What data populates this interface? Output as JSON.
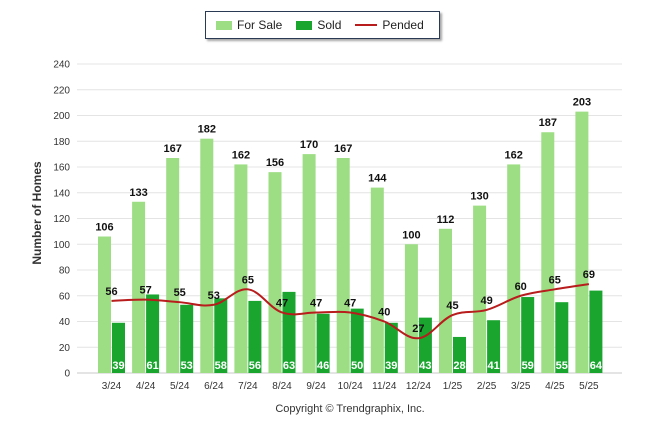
{
  "chart_data": {
    "type": "bar",
    "categories": [
      "3/24",
      "4/24",
      "5/24",
      "6/24",
      "7/24",
      "8/24",
      "9/24",
      "10/24",
      "11/24",
      "12/24",
      "1/25",
      "2/25",
      "3/25",
      "4/25",
      "5/25"
    ],
    "series": [
      {
        "name": "For Sale",
        "type": "bar",
        "values": [
          106,
          133,
          167,
          182,
          162,
          156,
          170,
          167,
          144,
          100,
          112,
          130,
          162,
          187,
          203
        ]
      },
      {
        "name": "Sold",
        "type": "bar",
        "values": [
          39,
          61,
          53,
          58,
          56,
          63,
          46,
          50,
          39,
          43,
          28,
          41,
          59,
          55,
          64
        ]
      },
      {
        "name": "Pended",
        "type": "line",
        "values": [
          56,
          57,
          55,
          53,
          65,
          47,
          47,
          47,
          40,
          27,
          45,
          49,
          60,
          65,
          69
        ]
      }
    ],
    "ylabel": "Number of Homes",
    "xlabel": "",
    "ylim": [
      0,
      240
    ],
    "yticks": [
      0,
      20,
      40,
      60,
      80,
      100,
      120,
      140,
      160,
      180,
      200,
      220,
      240
    ],
    "grid": true,
    "legend": "top-center",
    "colors": {
      "for_sale": "#9ddd84",
      "sold": "#1aa52f",
      "pended": "#b81c1c"
    }
  },
  "footer": {
    "copyright": "Copyright © Trendgraphix, Inc."
  }
}
